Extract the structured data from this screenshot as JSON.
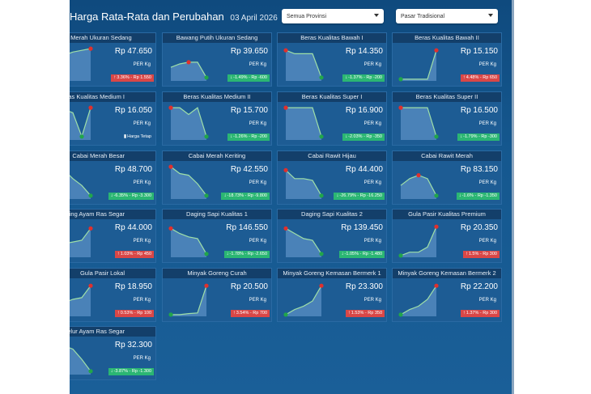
{
  "header": {
    "title": "Harga Rata-Rata dan Perubahan",
    "date": "03 April 2026",
    "province_select": "Semua Provinsi",
    "market_select": "Pasar Tradisional"
  },
  "colors": {
    "up": "#d94747",
    "down": "#2bb673",
    "line": "#9fe0a8",
    "area": "#6fa3d6"
  },
  "cards": [
    {
      "name": "Bawang Merah Ukuran Sedang",
      "price": "Rp 47.650",
      "unit": "PER Kg",
      "direction": "up",
      "change": "3.36% - Rp 1.550",
      "trend": [
        0.55,
        0.75,
        0.85,
        0.9,
        0.95
      ]
    },
    {
      "name": "Bawang Putih Ukuran Sedang",
      "price": "Rp 39.650",
      "unit": "PER Kg",
      "direction": "down",
      "change": "-1.49% - Rp -600",
      "trend": [
        0.4,
        0.5,
        0.55,
        0.55,
        0.1
      ]
    },
    {
      "name": "Beras Kualitas Bawah I",
      "price": "Rp 14.350",
      "unit": "PER Kg",
      "direction": "down",
      "change": "-1.37% - Rp -200",
      "trend": [
        0.9,
        0.8,
        0.8,
        0.8,
        0.1
      ]
    },
    {
      "name": "Beras Kualitas Bawah II",
      "price": "Rp 15.150",
      "unit": "PER Kg",
      "direction": "up",
      "change": "4.48% - Rp 650",
      "trend": [
        0.05,
        0.05,
        0.05,
        0.05,
        0.9
      ]
    },
    {
      "name": "Beras Kualitas Medium I",
      "price": "Rp 16.050",
      "unit": "PER Kg",
      "direction": "flat",
      "change": "Harga Tetap",
      "trend": [
        0.9,
        0.9,
        0.8,
        0.1,
        0.95
      ]
    },
    {
      "name": "Beras Kualitas Medium II",
      "price": "Rp 15.700",
      "unit": "PER Kg",
      "direction": "down",
      "change": "-1.26% - Rp -200",
      "trend": [
        0.95,
        0.95,
        0.75,
        0.95,
        0.1
      ]
    },
    {
      "name": "Beras Kualitas Super I",
      "price": "Rp 16.900",
      "unit": "PER Kg",
      "direction": "down",
      "change": "-2.03% - Rp -350",
      "trend": [
        0.95,
        0.95,
        0.95,
        0.95,
        0.1
      ]
    },
    {
      "name": "Beras Kualitas Super II",
      "price": "Rp 16.500",
      "unit": "PER Kg",
      "direction": "down",
      "change": "-1.79% - Rp -300",
      "trend": [
        0.95,
        0.95,
        0.95,
        0.95,
        0.1
      ]
    },
    {
      "name": "Cabai Merah Besar",
      "price": "Rp 48.700",
      "unit": "PER Kg",
      "direction": "down",
      "change": "-6.35% - Rp -3.300",
      "trend": [
        0.95,
        0.85,
        0.6,
        0.4,
        0.1
      ]
    },
    {
      "name": "Cabai Merah Keriting",
      "price": "Rp 42.550",
      "unit": "PER Kg",
      "direction": "down",
      "change": "-18.73% - Rp -9.800",
      "trend": [
        0.95,
        0.75,
        0.7,
        0.45,
        0.1
      ]
    },
    {
      "name": "Cabai Rawit Hijau",
      "price": "Rp 44.400",
      "unit": "PER Kg",
      "direction": "down",
      "change": "-26.79% - Rp -16.250",
      "trend": [
        0.85,
        0.6,
        0.6,
        0.55,
        0.1
      ]
    },
    {
      "name": "Cabai Rawit Merah",
      "price": "Rp 83.150",
      "unit": "PER Kg",
      "direction": "down",
      "change": "-1.6% - Rp -1.350",
      "trend": [
        0.4,
        0.6,
        0.7,
        0.6,
        0.1
      ]
    },
    {
      "name": "Daging Ayam Ras Segar",
      "price": "Rp 44.000",
      "unit": "PER Kg",
      "direction": "up",
      "change": "1.03% - Rp 450",
      "trend": [
        0.3,
        0.4,
        0.45,
        0.5,
        0.85
      ]
    },
    {
      "name": "Daging Sapi Kualitas 1",
      "price": "Rp 146.550",
      "unit": "PER Kg",
      "direction": "down",
      "change": "-1.78% - Rp -2.650",
      "trend": [
        0.85,
        0.7,
        0.6,
        0.55,
        0.1
      ]
    },
    {
      "name": "Daging Sapi Kualitas 2",
      "price": "Rp 139.450",
      "unit": "PER Kg",
      "direction": "down",
      "change": "-1.05% - Rp -1.480",
      "trend": [
        0.85,
        0.7,
        0.55,
        0.5,
        0.1
      ]
    },
    {
      "name": "Gula Pasir Kualitas Premium",
      "price": "Rp 20.350",
      "unit": "PER Kg",
      "direction": "up",
      "change": "1.5% - Rp 300",
      "trend": [
        0.05,
        0.15,
        0.15,
        0.3,
        0.9
      ]
    },
    {
      "name": "Gula Pasir Lokal",
      "price": "Rp 18.950",
      "unit": "PER Kg",
      "direction": "up",
      "change": "0.53% - Rp 100",
      "trend": [
        0.35,
        0.4,
        0.5,
        0.55,
        0.9
      ]
    },
    {
      "name": "Minyak Goreng Curah",
      "price": "Rp 20.500",
      "unit": "PER Kg",
      "direction": "up",
      "change": "3.54% - Rp 700",
      "trend": [
        0.05,
        0.05,
        0.08,
        0.1,
        0.9
      ]
    },
    {
      "name": "Minyak Goreng Kemasan Bermerk 1",
      "price": "Rp 23.300",
      "unit": "PER Kg",
      "direction": "up",
      "change": "1.53% - Rp 350",
      "trend": [
        0.05,
        0.2,
        0.3,
        0.45,
        0.9
      ]
    },
    {
      "name": "Minyak Goreng Kemasan Bermerk 2",
      "price": "Rp 22.200",
      "unit": "PER Kg",
      "direction": "up",
      "change": "1.37% - Rp 300",
      "trend": [
        0.05,
        0.2,
        0.3,
        0.5,
        0.9
      ]
    },
    {
      "name": "Telur Ayam Ras Segar",
      "price": "Rp 32.300",
      "unit": "PER Kg",
      "direction": "down",
      "change": "-3.87% - Rp -1.300",
      "trend": [
        0.8,
        0.85,
        0.75,
        0.45,
        0.1
      ]
    }
  ]
}
